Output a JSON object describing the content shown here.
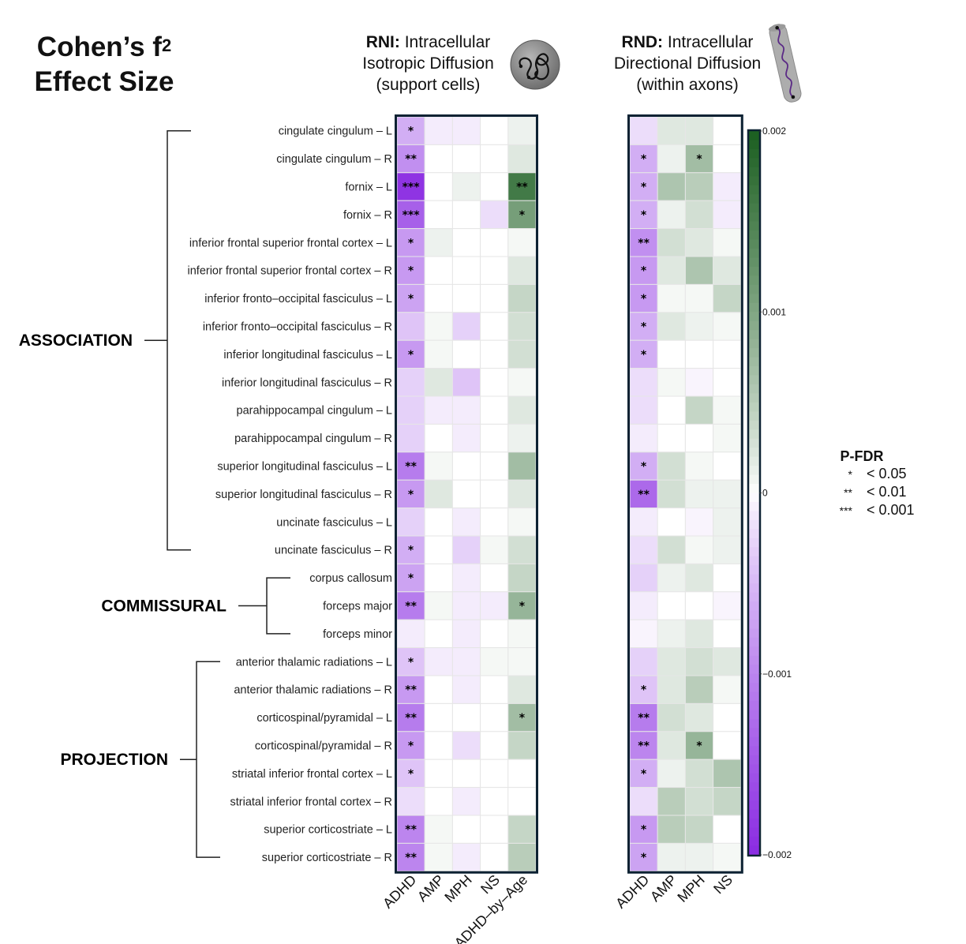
{
  "figure": {
    "title_line1": "Cohen’s f",
    "title_sup": "2",
    "title_line2": "Effect Size"
  },
  "panels": [
    {
      "id": "RNI",
      "bold": "RNI:",
      "line1": " Intracellular",
      "line2": "Isotropic Diffusion",
      "line3": "(support cells)",
      "icon": "support-cell-icon"
    },
    {
      "id": "RND",
      "bold": "RND:",
      "line1": " Intracellular",
      "line2": "Directional Diffusion",
      "line3": "(within axons)",
      "icon": "axon-icon"
    }
  ],
  "groups": [
    {
      "name": "ASSOCIATION",
      "start": 0,
      "end": 15
    },
    {
      "name": "COMMISSURAL",
      "start": 16,
      "end": 18
    },
    {
      "name": "PROJECTION",
      "start": 19,
      "end": 26
    }
  ],
  "legend": {
    "title": "P-FDR",
    "items": [
      {
        "stars": "*",
        "label": "< 0.05"
      },
      {
        "stars": "**",
        "label": "< 0.01"
      },
      {
        "stars": "***",
        "label": "< 0.001"
      }
    ]
  },
  "colors": {
    "negative": "#8a2be2",
    "zero": "#ffffff",
    "positive": "#1b5e20",
    "frame": "#0d2233",
    "grid": "#e6e6e6"
  },
  "chart_data": {
    "type": "heatmap",
    "title": "Cohen’s f2 Effect Size",
    "rows": [
      "cingulate cingulum – L",
      "cingulate cingulum – R",
      "fornix – L",
      "fornix – R",
      "inferior frontal superior frontal cortex – L",
      "inferior frontal superior frontal cortex – R",
      "inferior fronto–occipital fasciculus – L",
      "inferior fronto–occipital fasciculus – R",
      "inferior longitudinal fasciculus – L",
      "inferior longitudinal fasciculus – R",
      "parahippocampal cingulum – L",
      "parahippocampal cingulum – R",
      "superior longitudinal fasciculus – L",
      "superior longitudinal fasciculus – R",
      "uncinate fasciculus – L",
      "uncinate fasciculus – R",
      "corpus callosum",
      "forceps major",
      "forceps minor",
      "anterior thalamic radiations – L",
      "anterior thalamic radiations – R",
      "corticospinal/pyramidal – L",
      "corticospinal/pyramidal – R",
      "striatal inferior frontal cortex – L",
      "striatal inferior frontal cortex – R",
      "superior corticostriate – L",
      "superior corticostriate – R"
    ],
    "colorbar": {
      "range": [
        -0.002,
        0.002
      ],
      "ticks": [
        0.002,
        0.001,
        0,
        -0.001,
        -0.002
      ],
      "tick_labels": [
        "0.002",
        "0.001",
        "0",
        "−0.001",
        "−0.002"
      ]
    },
    "heatmaps": [
      {
        "name": "RNI",
        "columns": [
          "ADHD",
          "AMP",
          "MPH",
          "NS",
          "ADHD–by–Age"
        ],
        "values": [
          [
            -0.0006,
            -0.0001,
            -0.0001,
            0,
            0.0001
          ],
          [
            -0.0009,
            0,
            0,
            0,
            0.0002
          ],
          [
            -0.0019,
            0,
            0.0001,
            0,
            0.0016
          ],
          [
            -0.0014,
            0,
            0,
            -0.0002,
            0.0011
          ],
          [
            -0.0008,
            0.0001,
            0,
            0,
            5e-05
          ],
          [
            -0.0008,
            0,
            0,
            0,
            0.0002
          ],
          [
            -0.0007,
            0,
            0,
            0,
            0.0004
          ],
          [
            -0.0004,
            5e-05,
            -0.0003,
            0,
            0.0003
          ],
          [
            -0.0008,
            5e-05,
            0,
            0,
            0.0003
          ],
          [
            -0.0003,
            0.0002,
            -0.0004,
            0,
            5e-05
          ],
          [
            -0.0003,
            -0.0001,
            -0.0001,
            0,
            0.0002
          ],
          [
            -0.0003,
            0,
            -0.0001,
            0,
            0.0001
          ],
          [
            -0.0011,
            5e-05,
            0,
            0,
            0.0007
          ],
          [
            -0.0008,
            0.0002,
            0,
            0,
            0.0002
          ],
          [
            -0.0003,
            0,
            -0.0001,
            0,
            5e-05
          ],
          [
            -0.0006,
            0,
            -0.0003,
            5e-05,
            0.0003
          ],
          [
            -0.0007,
            0,
            -0.0001,
            0,
            0.0004
          ],
          [
            -0.0011,
            5e-05,
            -0.0001,
            -0.0001,
            0.0008
          ],
          [
            -0.0001,
            0,
            -0.0001,
            0,
            5e-05
          ],
          [
            -0.0004,
            -0.0001,
            -0.0001,
            5e-05,
            5e-05
          ],
          [
            -0.0008,
            0,
            -0.0001,
            0,
            0.0002
          ],
          [
            -0.0011,
            0,
            0,
            0,
            0.0007
          ],
          [
            -0.0008,
            0,
            -0.0002,
            0,
            0.0004
          ],
          [
            -0.0004,
            0,
            0,
            0,
            0
          ],
          [
            -0.0002,
            0,
            -0.0001,
            0,
            0
          ],
          [
            -0.001,
            5e-05,
            0,
            0,
            0.0004
          ],
          [
            -0.001,
            5e-05,
            -0.0001,
            0,
            0.0005
          ]
        ],
        "significance": [
          [
            "*",
            "",
            "",
            "",
            ""
          ],
          [
            "**",
            "",
            "",
            "",
            ""
          ],
          [
            "***",
            "",
            "",
            "",
            "**"
          ],
          [
            "***",
            "",
            "",
            "",
            "*"
          ],
          [
            "*",
            "",
            "",
            "",
            ""
          ],
          [
            "*",
            "",
            "",
            "",
            ""
          ],
          [
            "*",
            "",
            "",
            "",
            ""
          ],
          [
            "",
            "",
            "",
            "",
            ""
          ],
          [
            "*",
            "",
            "",
            "",
            ""
          ],
          [
            "",
            "",
            "",
            "",
            ""
          ],
          [
            "",
            "",
            "",
            "",
            ""
          ],
          [
            "",
            "",
            "",
            "",
            ""
          ],
          [
            "**",
            "",
            "",
            "",
            ""
          ],
          [
            "*",
            "",
            "",
            "",
            ""
          ],
          [
            "",
            "",
            "",
            "",
            ""
          ],
          [
            "*",
            "",
            "",
            "",
            ""
          ],
          [
            "*",
            "",
            "",
            "",
            ""
          ],
          [
            "**",
            "",
            "",
            "",
            "*"
          ],
          [
            "",
            "",
            "",
            "",
            ""
          ],
          [
            "*",
            "",
            "",
            "",
            ""
          ],
          [
            "**",
            "",
            "",
            "",
            ""
          ],
          [
            "**",
            "",
            "",
            "",
            "*"
          ],
          [
            "*",
            "",
            "",
            "",
            ""
          ],
          [
            "*",
            "",
            "",
            "",
            ""
          ],
          [
            "",
            "",
            "",
            "",
            ""
          ],
          [
            "**",
            "",
            "",
            "",
            ""
          ],
          [
            "**",
            "",
            "",
            "",
            ""
          ]
        ]
      },
      {
        "name": "RND",
        "columns": [
          "ADHD",
          "AMP",
          "MPH",
          "NS"
        ],
        "values": [
          [
            -0.0002,
            0.0002,
            0.0002,
            0
          ],
          [
            -0.0006,
            0.0001,
            0.0007,
            0
          ],
          [
            -0.0006,
            0.0006,
            0.0005,
            -0.0001
          ],
          [
            -0.0006,
            0.0001,
            0.0003,
            -0.0001
          ],
          [
            -0.0009,
            0.0003,
            0.0002,
            5e-05
          ],
          [
            -0.0008,
            0.0002,
            0.0006,
            0.0002
          ],
          [
            -0.0008,
            5e-05,
            5e-05,
            0.0004
          ],
          [
            -0.0006,
            0.0002,
            0.0001,
            5e-05
          ],
          [
            -0.0006,
            0,
            0,
            0
          ],
          [
            -0.0002,
            5e-05,
            -5e-05,
            0
          ],
          [
            -0.0002,
            0,
            0.0004,
            5e-05
          ],
          [
            -0.0001,
            0,
            0,
            5e-05
          ],
          [
            -0.0006,
            0.0003,
            5e-05,
            0
          ],
          [
            -0.0013,
            0.0003,
            0.0001,
            0.0001
          ],
          [
            -0.0001,
            0,
            -5e-05,
            0.0001
          ],
          [
            -0.0002,
            0.0003,
            5e-05,
            0.0001
          ],
          [
            -0.0003,
            0.0001,
            0.0002,
            0
          ],
          [
            -0.0001,
            0,
            0,
            -5e-05
          ],
          [
            -5e-05,
            0.0001,
            0.0002,
            0
          ],
          [
            -0.0003,
            0.0002,
            0.0003,
            0.0002
          ],
          [
            -0.0004,
            0.0002,
            0.0005,
            5e-05
          ],
          [
            -0.0011,
            0.0003,
            0.0002,
            0
          ],
          [
            -0.001,
            0.0002,
            0.0008,
            0
          ],
          [
            -0.0006,
            0.0001,
            0.0003,
            0.0006
          ],
          [
            -0.0002,
            0.0005,
            0.0003,
            0.0004
          ],
          [
            -0.0008,
            0.0005,
            0.0004,
            0
          ],
          [
            -0.0007,
            0.0001,
            0.0001,
            5e-05
          ]
        ],
        "significance": [
          [
            "",
            "",
            "",
            ""
          ],
          [
            "*",
            "",
            "*",
            ""
          ],
          [
            "*",
            "",
            "",
            ""
          ],
          [
            "*",
            "",
            "",
            ""
          ],
          [
            "**",
            "",
            "",
            ""
          ],
          [
            "*",
            "",
            "",
            ""
          ],
          [
            "*",
            "",
            "",
            ""
          ],
          [
            "*",
            "",
            "",
            ""
          ],
          [
            "*",
            "",
            "",
            ""
          ],
          [
            "",
            "",
            "",
            ""
          ],
          [
            "",
            "",
            "",
            ""
          ],
          [
            "",
            "",
            "",
            ""
          ],
          [
            "*",
            "",
            "",
            ""
          ],
          [
            "**",
            "",
            "",
            ""
          ],
          [
            "",
            "",
            "",
            ""
          ],
          [
            "",
            "",
            "",
            ""
          ],
          [
            "",
            "",
            "",
            ""
          ],
          [
            "",
            "",
            "",
            ""
          ],
          [
            "",
            "",
            "",
            ""
          ],
          [
            "",
            "",
            "",
            ""
          ],
          [
            "*",
            "",
            "",
            ""
          ],
          [
            "**",
            "",
            "",
            ""
          ],
          [
            "**",
            "",
            "*",
            ""
          ],
          [
            "*",
            "",
            "",
            ""
          ],
          [
            "",
            "",
            "",
            ""
          ],
          [
            "*",
            "",
            "",
            ""
          ],
          [
            "*",
            "",
            "",
            ""
          ]
        ]
      }
    ]
  }
}
